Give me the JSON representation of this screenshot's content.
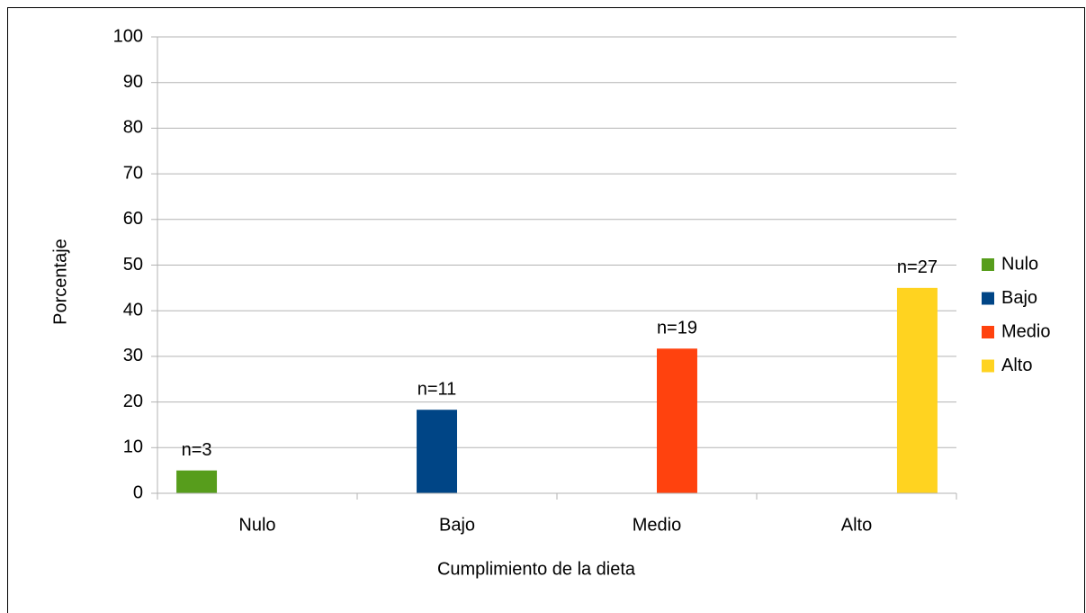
{
  "chart_data": {
    "type": "bar",
    "x_label": "Cumplimiento de la dieta",
    "y_label": "Porcentaje",
    "categories": [
      "Nulo",
      "Bajo",
      "Medio",
      "Alto"
    ],
    "series": [
      {
        "name": "Nulo",
        "color": "#579d1c",
        "values": [
          5,
          null,
          null,
          null
        ],
        "annotations": [
          "n=3",
          null,
          null,
          null
        ]
      },
      {
        "name": "Bajo",
        "color": "#004586",
        "values": [
          null,
          18.3,
          null,
          null
        ],
        "annotations": [
          null,
          "n=11",
          null,
          null
        ]
      },
      {
        "name": "Medio",
        "color": "#ff420e",
        "values": [
          null,
          null,
          31.7,
          null
        ],
        "annotations": [
          null,
          null,
          "n=19",
          null
        ]
      },
      {
        "name": "Alto",
        "color": "#ffd320",
        "values": [
          null,
          null,
          null,
          45
        ],
        "annotations": [
          null,
          null,
          null,
          "n=27"
        ]
      }
    ],
    "ylim": [
      0,
      100
    ],
    "yticks": [
      0,
      10,
      20,
      30,
      40,
      50,
      60,
      70,
      80,
      90,
      100
    ],
    "grid": true,
    "legend": "right"
  }
}
